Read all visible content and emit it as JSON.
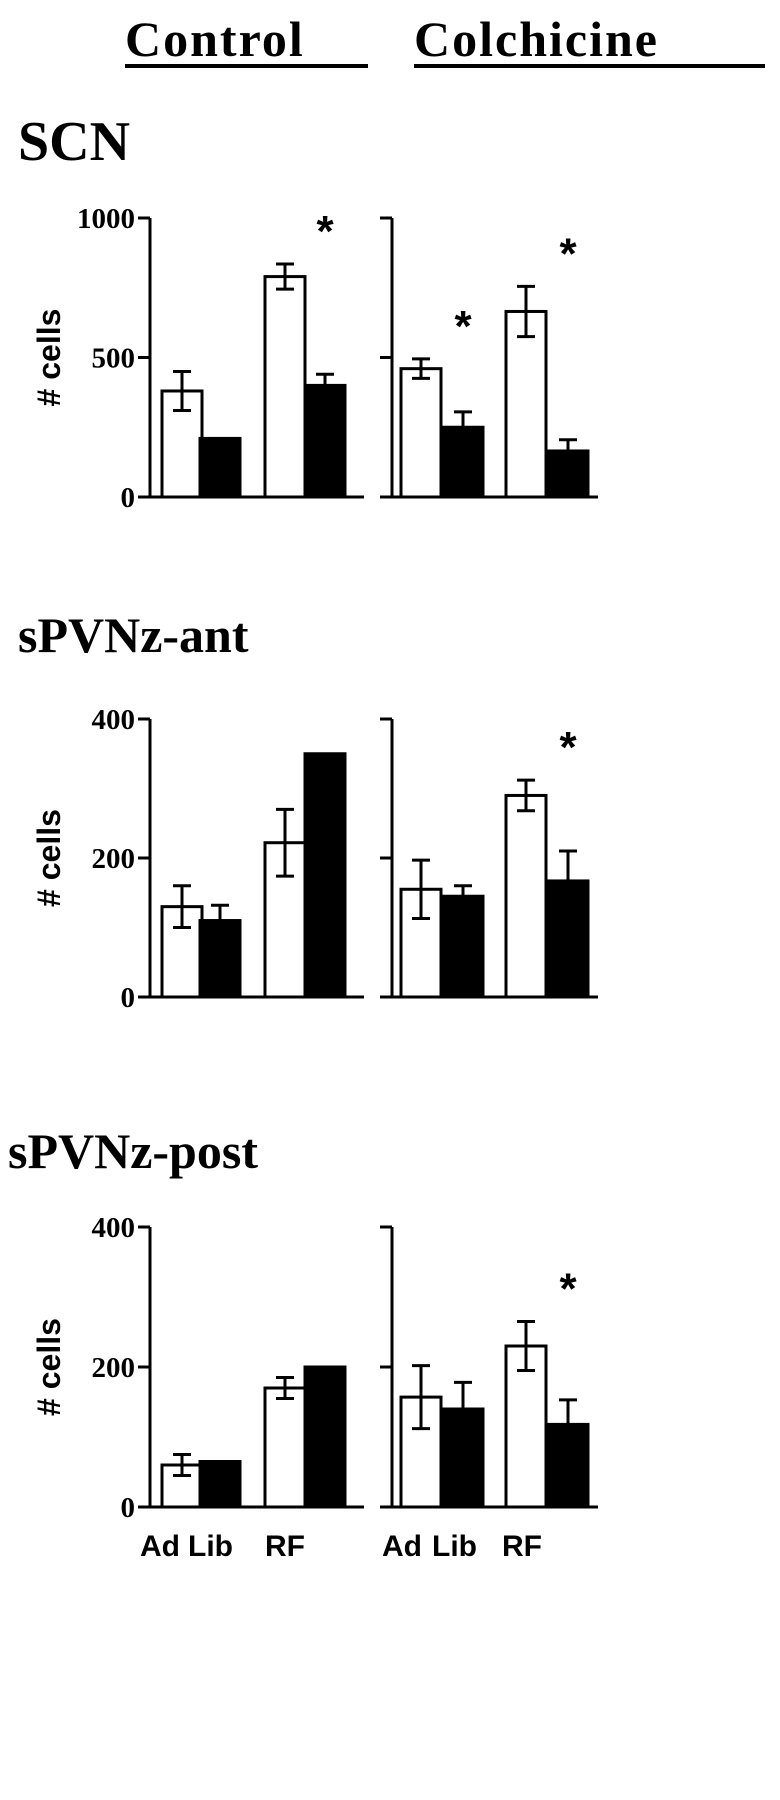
{
  "headers": {
    "left": "Control",
    "right": "Colchicine"
  },
  "x_categories": [
    "Ad",
    "Lib",
    "RF"
  ],
  "colors": {
    "open_bar": "#ffffff",
    "filled_bar": "#000000",
    "ink": "#000000"
  },
  "chart_data": [
    {
      "type": "bar",
      "title": "SCN",
      "ylabel": "# cells",
      "ylim": [
        0,
        1000
      ],
      "yticks": [
        "0",
        "500",
        "1000"
      ],
      "panels": [
        {
          "name": "Control",
          "bars": [
            {
              "group": "Ad",
              "fill": "open",
              "value": 380,
              "error": 70
            },
            {
              "group": "Ad",
              "fill": "filled",
              "value": 210,
              "error": 0
            },
            {
              "group": "RF",
              "fill": "open",
              "value": 790,
              "error": 45
            },
            {
              "group": "RF",
              "fill": "filled",
              "value": 400,
              "error": 40
            }
          ],
          "significance": [
            {
              "group": "RF",
              "label": "*"
            }
          ]
        },
        {
          "name": "Colchicine",
          "bars": [
            {
              "group": "Ad",
              "fill": "open",
              "value": 460,
              "error": 35
            },
            {
              "group": "Ad",
              "fill": "filled",
              "value": 250,
              "error": 55
            },
            {
              "group": "RF",
              "fill": "open",
              "value": 665,
              "error": 90
            },
            {
              "group": "RF",
              "fill": "filled",
              "value": 165,
              "error": 40
            }
          ],
          "significance": [
            {
              "group": "Ad",
              "label": "*"
            },
            {
              "group": "RF",
              "label": "*"
            }
          ]
        }
      ]
    },
    {
      "type": "bar",
      "title": "sPVNz-ant",
      "ylabel": "# cells",
      "ylim": [
        0,
        400
      ],
      "yticks": [
        "0",
        "200",
        "400"
      ],
      "panels": [
        {
          "name": "Control",
          "bars": [
            {
              "group": "Ad",
              "fill": "open",
              "value": 130,
              "error": 30
            },
            {
              "group": "Ad",
              "fill": "filled",
              "value": 110,
              "error": 22
            },
            {
              "group": "RF",
              "fill": "open",
              "value": 222,
              "error": 48
            },
            {
              "group": "RF",
              "fill": "filled",
              "value": 350,
              "error": 0
            }
          ],
          "significance": []
        },
        {
          "name": "Colchicine",
          "bars": [
            {
              "group": "Ad",
              "fill": "open",
              "value": 155,
              "error": 42
            },
            {
              "group": "Ad",
              "fill": "filled",
              "value": 145,
              "error": 15
            },
            {
              "group": "RF",
              "fill": "open",
              "value": 290,
              "error": 22
            },
            {
              "group": "RF",
              "fill": "filled",
              "value": 167,
              "error": 43
            }
          ],
          "significance": [
            {
              "group": "RF",
              "label": "*"
            }
          ]
        }
      ]
    },
    {
      "type": "bar",
      "title": "sPVNz-post",
      "ylabel": "# cells",
      "ylim": [
        0,
        400
      ],
      "yticks": [
        "0",
        "200",
        "400"
      ],
      "panels": [
        {
          "name": "Control",
          "bars": [
            {
              "group": "Ad",
              "fill": "open",
              "value": 60,
              "error": 15
            },
            {
              "group": "Ad",
              "fill": "filled",
              "value": 65,
              "error": 0
            },
            {
              "group": "RF",
              "fill": "open",
              "value": 170,
              "error": 15
            },
            {
              "group": "RF",
              "fill": "filled",
              "value": 200,
              "error": 0
            }
          ],
          "significance": []
        },
        {
          "name": "Colchicine",
          "bars": [
            {
              "group": "Ad",
              "fill": "open",
              "value": 157,
              "error": 45
            },
            {
              "group": "Ad",
              "fill": "filled",
              "value": 140,
              "error": 38
            },
            {
              "group": "RF",
              "fill": "open",
              "value": 230,
              "error": 35
            },
            {
              "group": "RF",
              "fill": "filled",
              "value": 118,
              "error": 35
            }
          ],
          "significance": [
            {
              "group": "RF",
              "label": "*"
            }
          ]
        }
      ]
    }
  ]
}
